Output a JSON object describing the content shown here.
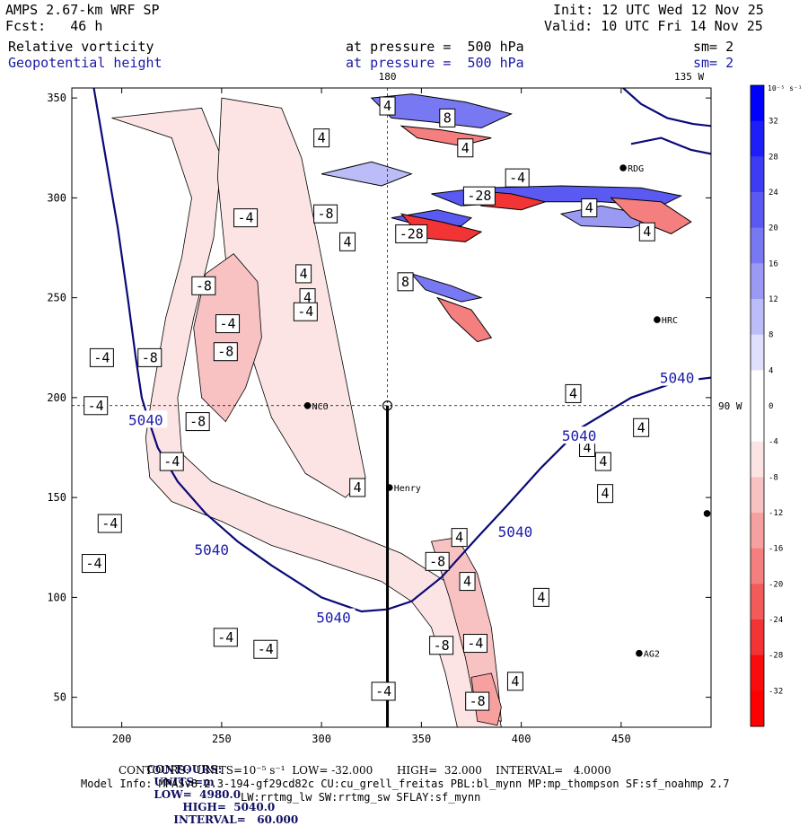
{
  "header": {
    "model": "AMPS 2.67-km WRF SP",
    "fcst": "Fcst:   46 h",
    "init": "Init: 12 UTC Wed 12 Nov 25",
    "valid": "Valid: 10 UTC Fri 14 Nov 25",
    "field1": "Relative vorticity",
    "field1_pressure": "at pressure =  500 hPa",
    "field1_sm": "sm= 2",
    "field2": "Geopotential height",
    "field2_pressure": "at pressure =  500 hPa",
    "field2_sm": "sm= 2"
  },
  "chart_data": {
    "type": "heatmap",
    "xlim": [
      175,
      495
    ],
    "ylim": [
      35,
      355
    ],
    "x_ticks": [
      "200",
      "250",
      "300",
      "350",
      "400",
      "450"
    ],
    "y_ticks": [
      "50",
      "100",
      "150",
      "200",
      "250",
      "300",
      "350"
    ],
    "x_tick_values": [
      200,
      250,
      300,
      350,
      400,
      450
    ],
    "y_tick_values": [
      50,
      100,
      150,
      200,
      250,
      300,
      350
    ],
    "meridian_labels": [
      {
        "text": "180",
        "x": 333
      },
      {
        "text": "135 W",
        "x": 484
      }
    ],
    "parallel_label": {
      "text": "90 W",
      "y": 196
    },
    "guides": {
      "x": 333,
      "y": 196
    },
    "cross_section_x": 333,
    "cross_section_y": [
      35,
      196
    ],
    "height_contour": {
      "label": "5040",
      "colorbar_levels": [],
      "lines": [
        [
          [
            186,
            355
          ],
          [
            192,
            320
          ],
          [
            198,
            285
          ],
          [
            203,
            250
          ],
          [
            207,
            220
          ],
          [
            210,
            200
          ],
          [
            213,
            190
          ],
          [
            218,
            175
          ],
          [
            228,
            158
          ],
          [
            242,
            142
          ],
          [
            258,
            128
          ],
          [
            275,
            116
          ],
          [
            300,
            100
          ],
          [
            320,
            93
          ],
          [
            333,
            94
          ],
          [
            345,
            98
          ],
          [
            360,
            110
          ],
          [
            378,
            130
          ],
          [
            392,
            145
          ],
          [
            410,
            165
          ],
          [
            430,
            185
          ],
          [
            455,
            200
          ],
          [
            478,
            208
          ],
          [
            495,
            210
          ]
        ],
        [
          [
            451,
            355
          ],
          [
            460,
            347
          ],
          [
            473,
            340
          ],
          [
            486,
            337
          ],
          [
            495,
            336
          ]
        ],
        [
          [
            455,
            327
          ],
          [
            470,
            330
          ],
          [
            485,
            324
          ],
          [
            495,
            322
          ]
        ]
      ],
      "labels": [
        {
          "x": 212,
          "y": 189
        },
        {
          "x": 245,
          "y": 124
        },
        {
          "x": 306,
          "y": 90
        },
        {
          "x": 397,
          "y": 133
        },
        {
          "x": 429,
          "y": 181
        },
        {
          "x": 478,
          "y": 210
        }
      ]
    },
    "vorticity_labels": [
      {
        "text": "4",
        "x": 333,
        "y": 346
      },
      {
        "text": "8",
        "x": 363,
        "y": 340
      },
      {
        "text": "4",
        "x": 300,
        "y": 330
      },
      {
        "text": "4",
        "x": 372,
        "y": 325
      },
      {
        "text": "-4",
        "x": 398,
        "y": 310
      },
      {
        "text": "-28",
        "x": 379,
        "y": 301
      },
      {
        "text": "-8",
        "x": 302,
        "y": 292
      },
      {
        "text": "4",
        "x": 434,
        "y": 295
      },
      {
        "text": "-4",
        "x": 262,
        "y": 290
      },
      {
        "text": "-28",
        "x": 345,
        "y": 282
      },
      {
        "text": "4",
        "x": 313,
        "y": 278
      },
      {
        "text": "4",
        "x": 463,
        "y": 283
      },
      {
        "text": "4",
        "x": 291,
        "y": 262
      },
      {
        "text": "-8",
        "x": 241,
        "y": 256
      },
      {
        "text": "8",
        "x": 342,
        "y": 258
      },
      {
        "text": "4",
        "x": 293,
        "y": 250
      },
      {
        "text": "-4",
        "x": 292,
        "y": 243
      },
      {
        "text": "-4",
        "x": 253,
        "y": 237
      },
      {
        "text": "-8",
        "x": 252,
        "y": 223
      },
      {
        "text": "-4",
        "x": 190,
        "y": 220
      },
      {
        "text": "-8",
        "x": 214,
        "y": 220
      },
      {
        "text": "4",
        "x": 426,
        "y": 202
      },
      {
        "text": "-4",
        "x": 187,
        "y": 196
      },
      {
        "text": "-8",
        "x": 238,
        "y": 188
      },
      {
        "text": "4",
        "x": 460,
        "y": 185
      },
      {
        "text": "4",
        "x": 433,
        "y": 175
      },
      {
        "text": "-4",
        "x": 225,
        "y": 168
      },
      {
        "text": "4",
        "x": 441,
        "y": 168
      },
      {
        "text": "4",
        "x": 318,
        "y": 155
      },
      {
        "text": "4",
        "x": 442,
        "y": 152
      },
      {
        "text": "-4",
        "x": 194,
        "y": 137
      },
      {
        "text": "4",
        "x": 369,
        "y": 130
      },
      {
        "text": "-8",
        "x": 358,
        "y": 118
      },
      {
        "text": "-4",
        "x": 186,
        "y": 117
      },
      {
        "text": "4",
        "x": 373,
        "y": 108
      },
      {
        "text": "4",
        "x": 410,
        "y": 100
      },
      {
        "text": "-4",
        "x": 252,
        "y": 80
      },
      {
        "text": "-4",
        "x": 272,
        "y": 74
      },
      {
        "text": "-8",
        "x": 360,
        "y": 76
      },
      {
        "text": "-4",
        "x": 377,
        "y": 77
      },
      {
        "text": "4",
        "x": 397,
        "y": 58
      },
      {
        "text": "-4",
        "x": 331,
        "y": 53
      },
      {
        "text": "-8",
        "x": 378,
        "y": 48
      }
    ],
    "stations": [
      {
        "name": "RDG",
        "x": 451,
        "y": 315
      },
      {
        "name": "HRC",
        "x": 468,
        "y": 239
      },
      {
        "name": "NCO",
        "x": 293,
        "y": 196
      },
      {
        "name": "Henry",
        "x": 334,
        "y": 155
      },
      {
        "name": "",
        "x": 493,
        "y": 142
      },
      {
        "name": "AG2",
        "x": 459,
        "y": 72
      }
    ],
    "neg_bands": [
      {
        "poly": [
          [
            195,
            340
          ],
          [
            225,
            330
          ],
          [
            235,
            300
          ],
          [
            230,
            270
          ],
          [
            222,
            240
          ],
          [
            215,
            200
          ],
          [
            212,
            180
          ],
          [
            214,
            160
          ],
          [
            225,
            148
          ],
          [
            250,
            138
          ],
          [
            275,
            126
          ],
          [
            300,
            118
          ],
          [
            330,
            108
          ],
          [
            345,
            98
          ],
          [
            355,
            85
          ],
          [
            362,
            62
          ],
          [
            368,
            35
          ],
          [
            390,
            35
          ],
          [
            385,
            60
          ],
          [
            376,
            90
          ],
          [
            362,
            108
          ],
          [
            340,
            122
          ],
          [
            310,
            134
          ],
          [
            275,
            146
          ],
          [
            245,
            158
          ],
          [
            230,
            172
          ],
          [
            228,
            200
          ],
          [
            236,
            240
          ],
          [
            246,
            280
          ],
          [
            250,
            320
          ],
          [
            240,
            345
          ]
        ],
        "level": 1
      },
      {
        "poly": [
          [
            250,
            350
          ],
          [
            280,
            345
          ],
          [
            290,
            320
          ],
          [
            300,
            270
          ],
          [
            310,
            220
          ],
          [
            318,
            180
          ],
          [
            322,
            160
          ],
          [
            312,
            150
          ],
          [
            292,
            162
          ],
          [
            275,
            190
          ],
          [
            262,
            230
          ],
          [
            252,
            270
          ],
          [
            248,
            310
          ]
        ],
        "level": 1
      },
      {
        "poly": [
          [
            242,
            262
          ],
          [
            256,
            272
          ],
          [
            268,
            258
          ],
          [
            270,
            230
          ],
          [
            262,
            205
          ],
          [
            252,
            188
          ],
          [
            240,
            200
          ],
          [
            236,
            235
          ]
        ],
        "level": 2
      },
      {
        "poly": [
          [
            355,
            128
          ],
          [
            368,
            130
          ],
          [
            378,
            112
          ],
          [
            385,
            85
          ],
          [
            388,
            60
          ],
          [
            390,
            38
          ],
          [
            378,
            40
          ],
          [
            372,
            70
          ],
          [
            364,
            100
          ]
        ],
        "level": 2
      },
      {
        "poly": [
          [
            375,
            60
          ],
          [
            385,
            62
          ],
          [
            390,
            45
          ],
          [
            388,
            36
          ],
          [
            378,
            38
          ]
        ],
        "level": 3
      }
    ],
    "pos_bands": [
      {
        "poly": [
          [
            325,
            350
          ],
          [
            345,
            352
          ],
          [
            372,
            348
          ],
          [
            395,
            342
          ],
          [
            380,
            335
          ],
          [
            355,
            338
          ],
          [
            335,
            340
          ]
        ],
        "level": 4
      },
      {
        "poly": [
          [
            355,
            302
          ],
          [
            380,
            305
          ],
          [
            420,
            306
          ],
          [
            460,
            305
          ],
          [
            480,
            301
          ],
          [
            470,
            296
          ],
          [
            440,
            298
          ],
          [
            400,
            298
          ],
          [
            370,
            296
          ]
        ],
        "level": 5
      },
      {
        "poly": [
          [
            335,
            290
          ],
          [
            358,
            294
          ],
          [
            375,
            290
          ],
          [
            370,
            286
          ],
          [
            350,
            286
          ]
        ],
        "level": 5
      },
      {
        "poly": [
          [
            345,
            262
          ],
          [
            365,
            256
          ],
          [
            380,
            250
          ],
          [
            370,
            248
          ],
          [
            352,
            254
          ]
        ],
        "level": 4
      },
      {
        "poly": [
          [
            420,
            292
          ],
          [
            440,
            296
          ],
          [
            470,
            290
          ],
          [
            455,
            285
          ],
          [
            430,
            286
          ]
        ],
        "level": 3
      },
      {
        "poly": [
          [
            300,
            312
          ],
          [
            325,
            318
          ],
          [
            345,
            312
          ],
          [
            330,
            306
          ]
        ],
        "level": 2
      }
    ],
    "neg_streaks": [
      {
        "poly": [
          [
            340,
            292
          ],
          [
            360,
            288
          ],
          [
            380,
            283
          ],
          [
            372,
            278
          ],
          [
            350,
            280
          ]
        ],
        "level": 6
      },
      {
        "poly": [
          [
            372,
            304
          ],
          [
            395,
            302
          ],
          [
            412,
            298
          ],
          [
            400,
            294
          ],
          [
            380,
            296
          ]
        ],
        "level": 6
      },
      {
        "poly": [
          [
            340,
            336
          ],
          [
            360,
            334
          ],
          [
            385,
            330
          ],
          [
            370,
            326
          ],
          [
            348,
            330
          ]
        ],
        "level": 4
      },
      {
        "poly": [
          [
            358,
            250
          ],
          [
            375,
            244
          ],
          [
            385,
            230
          ],
          [
            378,
            228
          ],
          [
            365,
            240
          ]
        ],
        "level": 4
      },
      {
        "poly": [
          [
            445,
            300
          ],
          [
            470,
            298
          ],
          [
            485,
            288
          ],
          [
            475,
            282
          ],
          [
            455,
            290
          ]
        ],
        "level": 4
      }
    ],
    "colorbar": {
      "units": "10⁻⁵ s⁻¹",
      "labels": [
        "32",
        "28",
        "24",
        "20",
        "16",
        "12",
        "8",
        "4",
        "0",
        "-4",
        "-8",
        "-12",
        "-16",
        "-20",
        "-24",
        "-28",
        "-32"
      ],
      "colors": [
        "#0000ff",
        "#1e1ef8",
        "#3c3cf4",
        "#5a5af2",
        "#7878f2",
        "#9a9af4",
        "#bcbcf8",
        "#e0e0fc",
        "#ffffff",
        "#ffffff",
        "#fce4e4",
        "#f9c2c2",
        "#f7a0a0",
        "#f57e7e",
        "#f35a5a",
        "#f23434",
        "#f80c0c",
        "#ff0000"
      ]
    }
  },
  "footer": {
    "line1_lead": "CONTOURS:",
    "line1_units": "UNITS=m",
    "line1_low": "LOW=  4980.0",
    "line1_high": "HIGH=  5040.0",
    "line1_int": "INTERVAL=   60.000",
    "line2": "CONTOURS:  UNITS=10⁻⁵ s⁻¹  LOW= -32.000       HIGH=  32.000    INTERVAL=   4.0000",
    "line3": "Model Info: MPASv8.2.3-194-gf29cd82c CU:cu_grell_freitas PBL:bl_mynn MP:mp_thompson SF:sf_noahmp 2.7",
    "line4": "LW:rrtmg_lw SW:rrtmg_sw SFLAY:sf_mynn"
  }
}
